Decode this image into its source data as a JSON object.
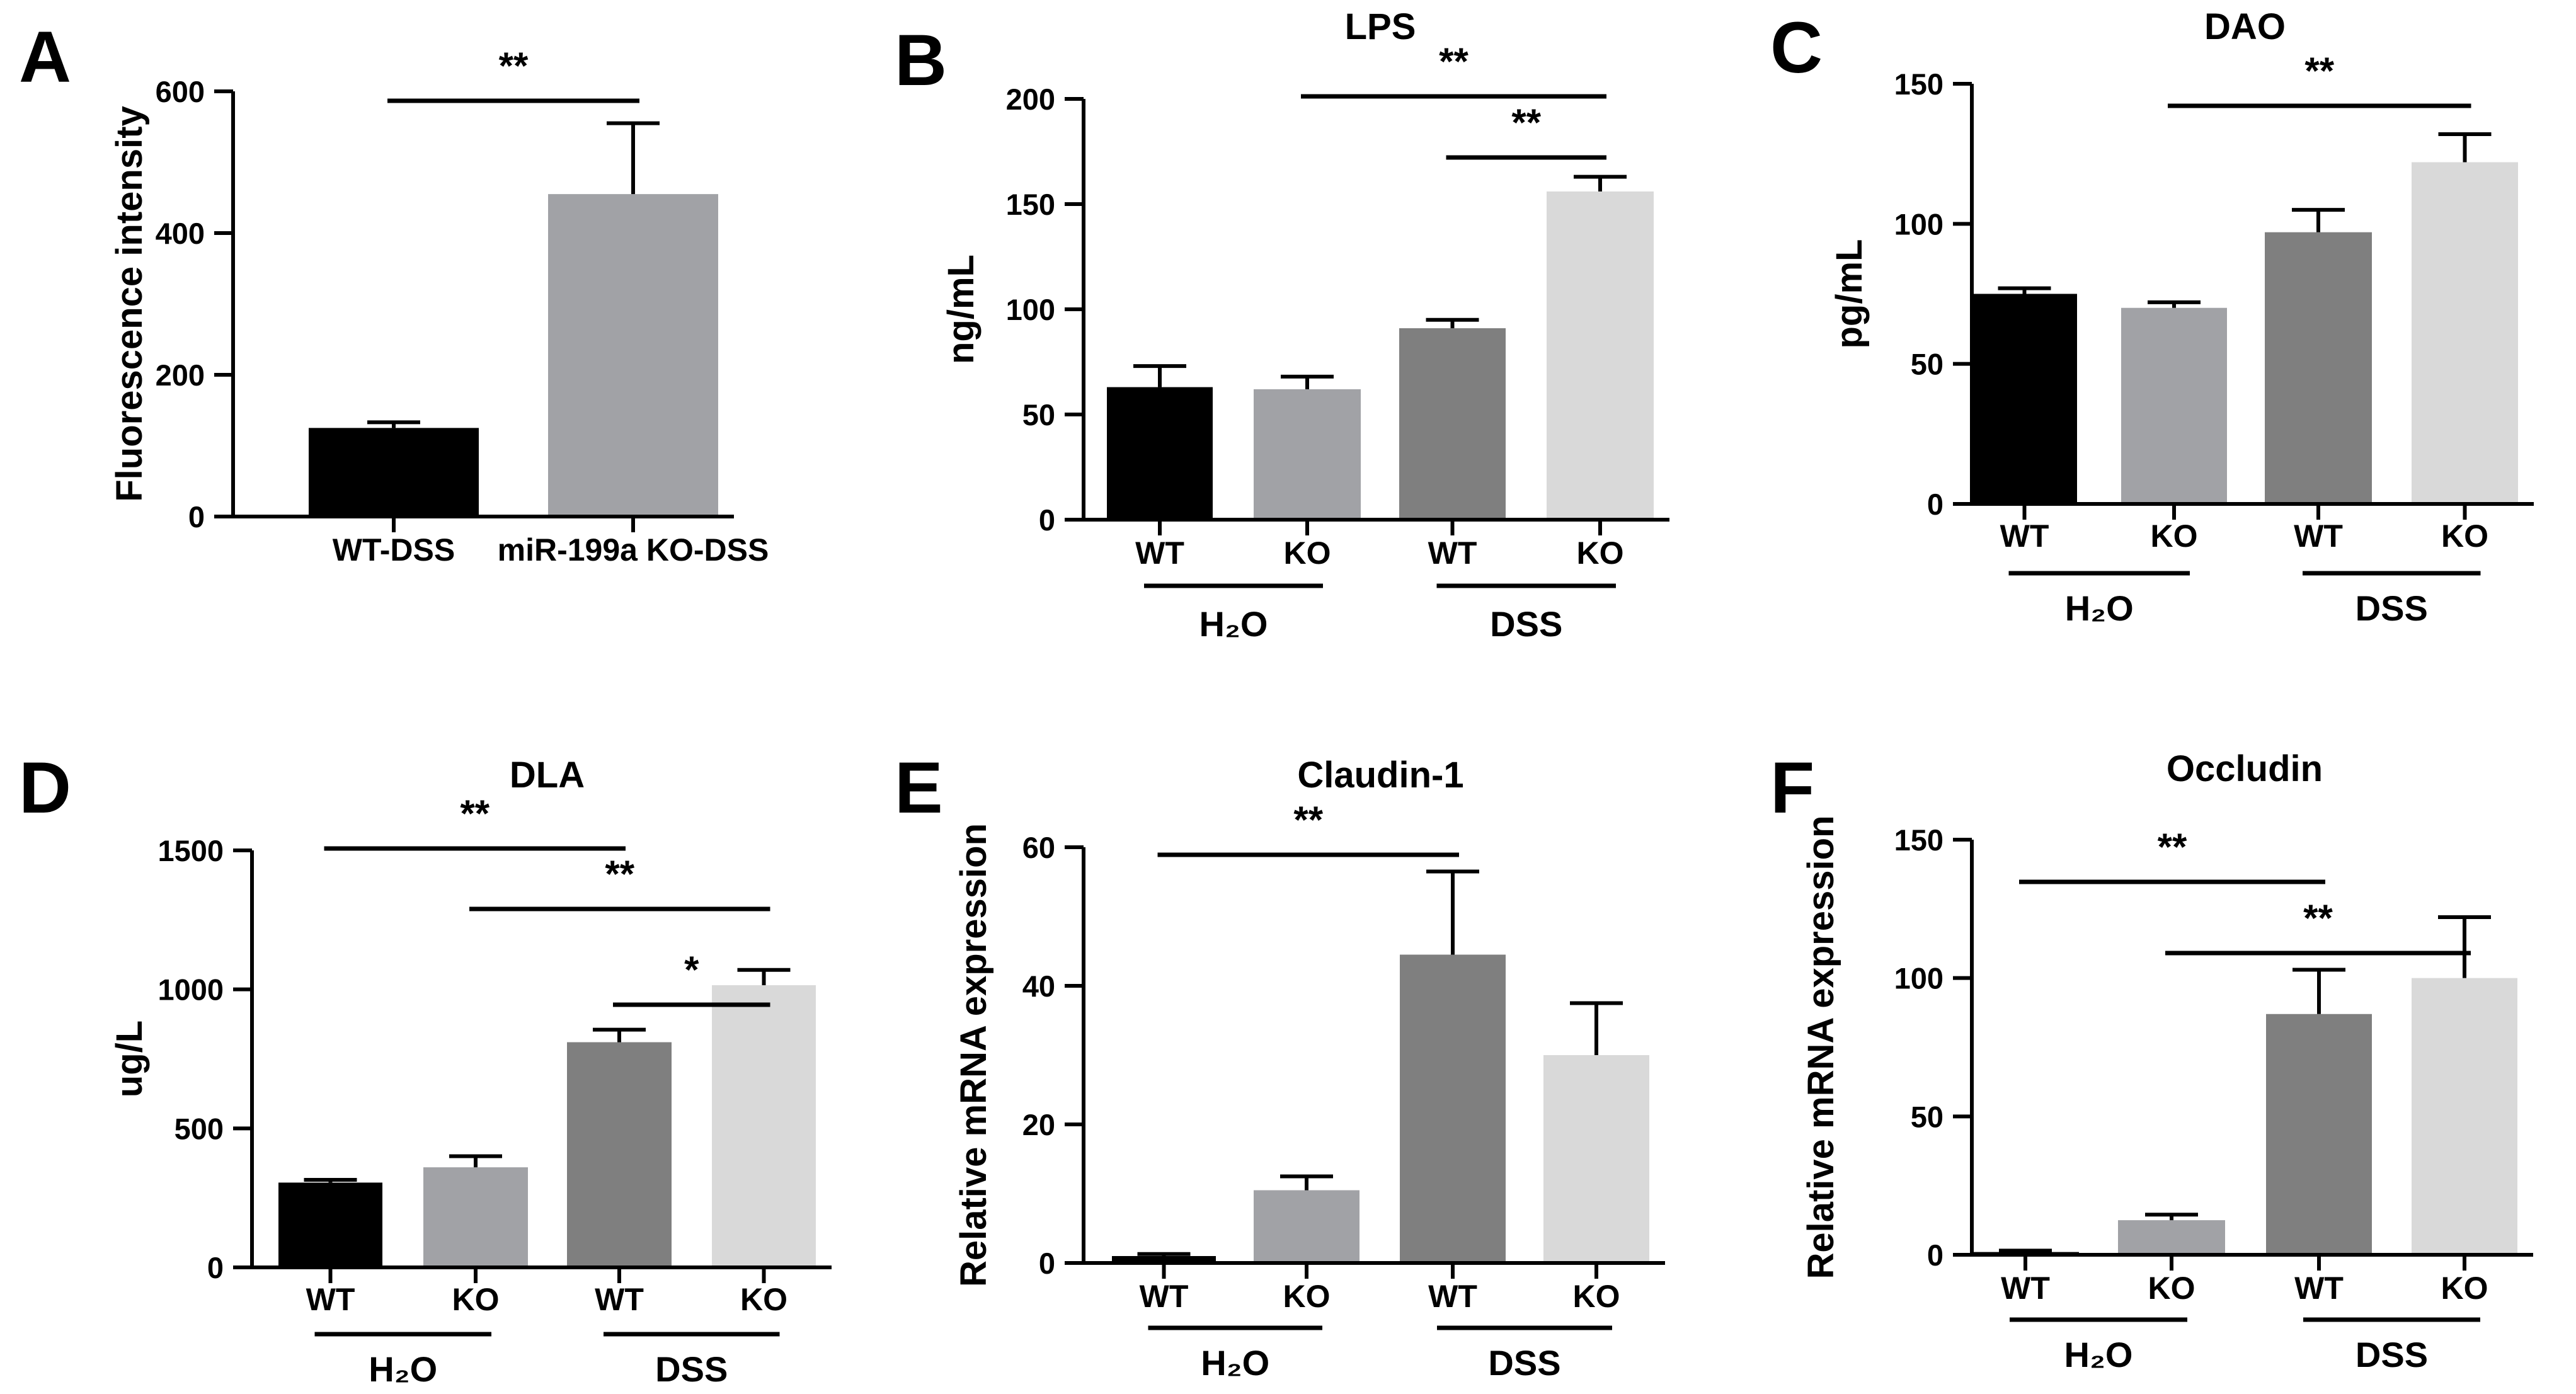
{
  "figure": {
    "colors": {
      "WT_H2O": "#000000",
      "KO_H2O": "#a1a2a6",
      "WT_DSS": "#7f7f7f",
      "KO_DSS": "#d9d9d9",
      "axis": "#000000"
    }
  },
  "chart_data": [
    {
      "panel": "A",
      "type": "bar",
      "title": "",
      "xlabel": "",
      "ylabel": "Fluorescence intensity",
      "ylim": [
        0,
        600
      ],
      "yticks": [
        0,
        200,
        400,
        600
      ],
      "categories": [
        "WT-DSS",
        "miR-199a KO-DSS"
      ],
      "values": [
        125,
        455
      ],
      "errors": [
        8,
        100
      ],
      "colors": [
        "#000000",
        "#a1a2a6"
      ],
      "groups": [],
      "significance": [
        {
          "from": 0,
          "to": 1,
          "label": "**"
        }
      ]
    },
    {
      "panel": "B",
      "type": "bar",
      "title": "LPS",
      "xlabel": "",
      "ylabel": "ng/mL",
      "ylim": [
        0,
        200
      ],
      "yticks": [
        0,
        50,
        100,
        150,
        200
      ],
      "categories": [
        "WT",
        "KO",
        "WT",
        "KO"
      ],
      "values": [
        63,
        62,
        91,
        156
      ],
      "errors": [
        10,
        6,
        4,
        7
      ],
      "colors": [
        "#000000",
        "#a1a2a6",
        "#7f7f7f",
        "#d9d9d9"
      ],
      "groups": [
        {
          "label": "H₂O",
          "from": 0,
          "to": 1
        },
        {
          "label": "DSS",
          "from": 2,
          "to": 3
        }
      ],
      "significance": [
        {
          "from": 1,
          "to": 3,
          "label": "**"
        },
        {
          "from": 2,
          "to": 3,
          "label": "**"
        }
      ]
    },
    {
      "panel": "C",
      "type": "bar",
      "title": "DAO",
      "xlabel": "",
      "ylabel": "pg/mL",
      "ylim": [
        0,
        150
      ],
      "yticks": [
        0,
        50,
        100,
        150
      ],
      "categories": [
        "WT",
        "KO",
        "WT",
        "KO"
      ],
      "values": [
        75,
        70,
        97,
        122
      ],
      "errors": [
        2,
        2,
        8,
        10
      ],
      "colors": [
        "#000000",
        "#a1a2a6",
        "#7f7f7f",
        "#d9d9d9"
      ],
      "groups": [
        {
          "label": "H₂O",
          "from": 0,
          "to": 1
        },
        {
          "label": "DSS",
          "from": 2,
          "to": 3
        }
      ],
      "significance": [
        {
          "from": 1,
          "to": 3,
          "label": "**"
        }
      ]
    },
    {
      "panel": "D",
      "type": "bar",
      "title": "DLA",
      "xlabel": "",
      "ylabel": "ug/L",
      "ylim": [
        0,
        1500
      ],
      "yticks": [
        0,
        500,
        1000,
        1500
      ],
      "categories": [
        "WT",
        "KO",
        "WT",
        "KO"
      ],
      "values": [
        305,
        360,
        810,
        1015
      ],
      "errors": [
        10,
        40,
        45,
        55
      ],
      "colors": [
        "#000000",
        "#a1a2a6",
        "#7f7f7f",
        "#d9d9d9"
      ],
      "groups": [
        {
          "label": "H₂O",
          "from": 0,
          "to": 1
        },
        {
          "label": "DSS",
          "from": 2,
          "to": 3
        }
      ],
      "significance": [
        {
          "from": 0,
          "to": 2,
          "label": "**"
        },
        {
          "from": 1,
          "to": 3,
          "label": "**"
        },
        {
          "from": 2,
          "to": 3,
          "label": "*"
        }
      ]
    },
    {
      "panel": "E",
      "type": "bar",
      "title": "Claudin-1",
      "xlabel": "",
      "ylabel": "Relative mRNA expression",
      "ylim": [
        0,
        60
      ],
      "yticks": [
        0,
        20,
        40,
        60
      ],
      "categories": [
        "WT",
        "KO",
        "WT",
        "KO"
      ],
      "values": [
        1,
        10.5,
        44.5,
        30
      ],
      "errors": [
        0.3,
        2,
        12,
        7.5
      ],
      "colors": [
        "#000000",
        "#a1a2a6",
        "#7f7f7f",
        "#d9d9d9"
      ],
      "groups": [
        {
          "label": "H₂O",
          "from": 0,
          "to": 1
        },
        {
          "label": "DSS",
          "from": 2,
          "to": 3
        }
      ],
      "significance": [
        {
          "from": 0,
          "to": 2,
          "label": "**"
        }
      ]
    },
    {
      "panel": "F",
      "type": "bar",
      "title": "Occludin",
      "xlabel": "",
      "ylabel": "Relative mRNA expression",
      "ylim": [
        0,
        150
      ],
      "yticks": [
        0,
        50,
        100,
        150
      ],
      "categories": [
        "WT",
        "KO",
        "WT",
        "KO"
      ],
      "values": [
        1,
        12.5,
        87,
        100
      ],
      "errors": [
        0.5,
        2,
        16,
        22
      ],
      "colors": [
        "#000000",
        "#a1a2a6",
        "#7f7f7f",
        "#d9d9d9"
      ],
      "groups": [
        {
          "label": "H₂O",
          "from": 0,
          "to": 1
        },
        {
          "label": "DSS",
          "from": 2,
          "to": 3
        }
      ],
      "significance": [
        {
          "from": 0,
          "to": 2,
          "label": "**"
        },
        {
          "from": 1,
          "to": 3,
          "label": "**"
        }
      ]
    }
  ]
}
